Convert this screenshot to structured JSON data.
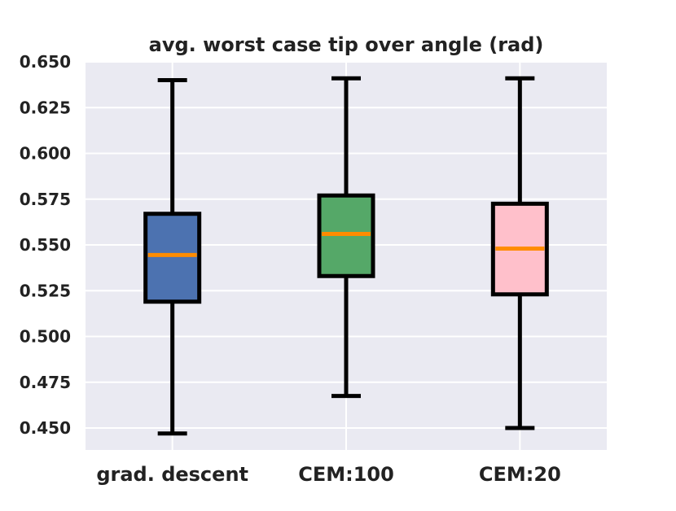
{
  "chart_data": {
    "type": "box",
    "title": "avg. worst case tip over angle (rad)",
    "xlabel": "",
    "ylabel": "",
    "ylim": [
      0.438,
      0.65
    ],
    "yticks": [
      0.45,
      0.475,
      0.5,
      0.525,
      0.55,
      0.575,
      0.6,
      0.625,
      0.65
    ],
    "ytick_labels": [
      "0.450",
      "0.475",
      "0.500",
      "0.525",
      "0.550",
      "0.575",
      "0.600",
      "0.625",
      "0.650"
    ],
    "categories": [
      "grad. descent",
      "CEM:100",
      "CEM:20"
    ],
    "boxes": [
      {
        "whislo": 0.447,
        "q1": 0.519,
        "med": 0.5445,
        "q3": 0.567,
        "whishi": 0.64,
        "color": "#4c72b0"
      },
      {
        "whislo": 0.4675,
        "q1": 0.533,
        "med": 0.556,
        "q3": 0.577,
        "whishi": 0.641,
        "color": "#55a868"
      },
      {
        "whislo": 0.45,
        "q1": 0.523,
        "med": 0.548,
        "q3": 0.5725,
        "whishi": 0.641,
        "color": "#ffc0cb"
      }
    ],
    "median_color": "#ff8c00",
    "background_color": "#eaeaf2",
    "grid": true
  }
}
